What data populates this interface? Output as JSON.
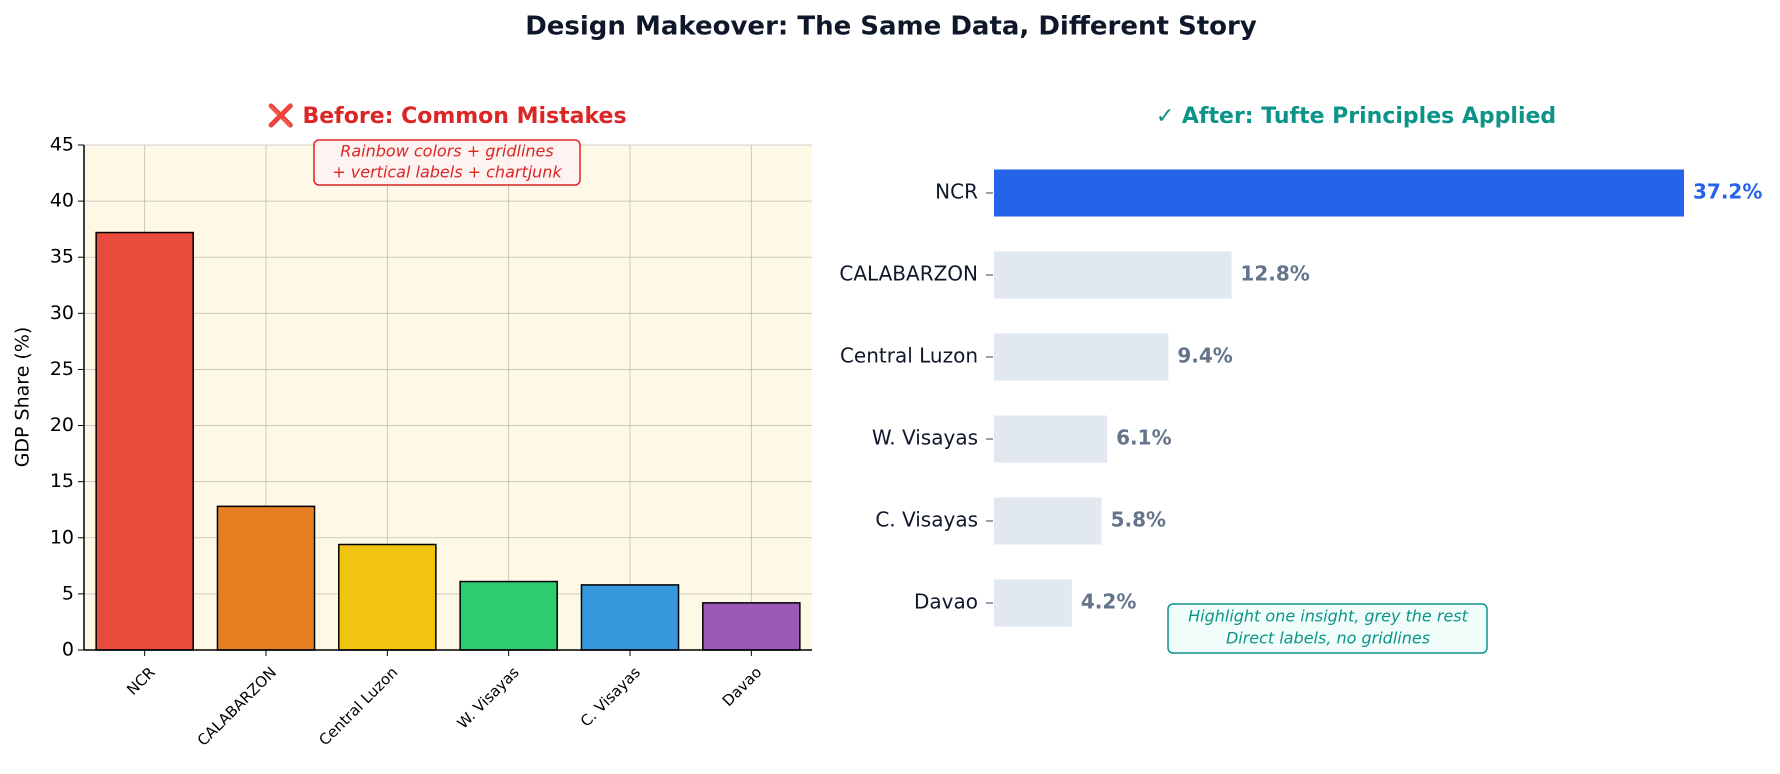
{
  "title": "Design Makeover: The Same Data, Different Story",
  "chart_data": [
    {
      "type": "bar",
      "title": "❌  Before: Common Mistakes",
      "title_color": "#dc2626",
      "ylabel": "GDP Share (%)",
      "annotation": [
        "Rainbow colors + gridlines",
        "+ vertical labels + chartjunk"
      ],
      "categories": [
        "NCR",
        "CALABARZON",
        "Central Luzon",
        "W. Visayas",
        "C. Visayas",
        "Davao"
      ],
      "values": [
        37.2,
        12.8,
        9.4,
        6.1,
        5.8,
        4.2
      ],
      "colors": [
        "#e74c3c",
        "#e67e22",
        "#f1c40f",
        "#2ecc71",
        "#3498db",
        "#9b59b6"
      ],
      "background": "#fdf9e6",
      "ylim": [
        0,
        45
      ],
      "yticks": [
        0,
        5,
        10,
        15,
        20,
        25,
        30,
        35,
        40,
        45
      ],
      "grid": true
    },
    {
      "type": "barh",
      "title": "✓  After: Tufte Principles Applied",
      "title_color": "#0d9488",
      "annotation": [
        "Highlight one insight, grey the rest",
        "Direct labels, no gridlines"
      ],
      "categories": [
        "NCR",
        "CALABARZON",
        "Central Luzon",
        "W. Visayas",
        "C. Visayas",
        "Davao"
      ],
      "values": [
        37.2,
        12.8,
        9.4,
        6.1,
        5.8,
        4.2
      ],
      "value_labels": [
        "37.2%",
        "12.8%",
        "9.4%",
        "6.1%",
        "5.8%",
        "4.2%"
      ],
      "colors": [
        "#2563eb",
        "#e2e8f0",
        "#e2e8f0",
        "#e2e8f0",
        "#e2e8f0",
        "#e2e8f0"
      ],
      "label_colors": [
        "#2563eb",
        "#64748b",
        "#64748b",
        "#64748b",
        "#64748b",
        "#64748b"
      ],
      "grid": false
    }
  ]
}
